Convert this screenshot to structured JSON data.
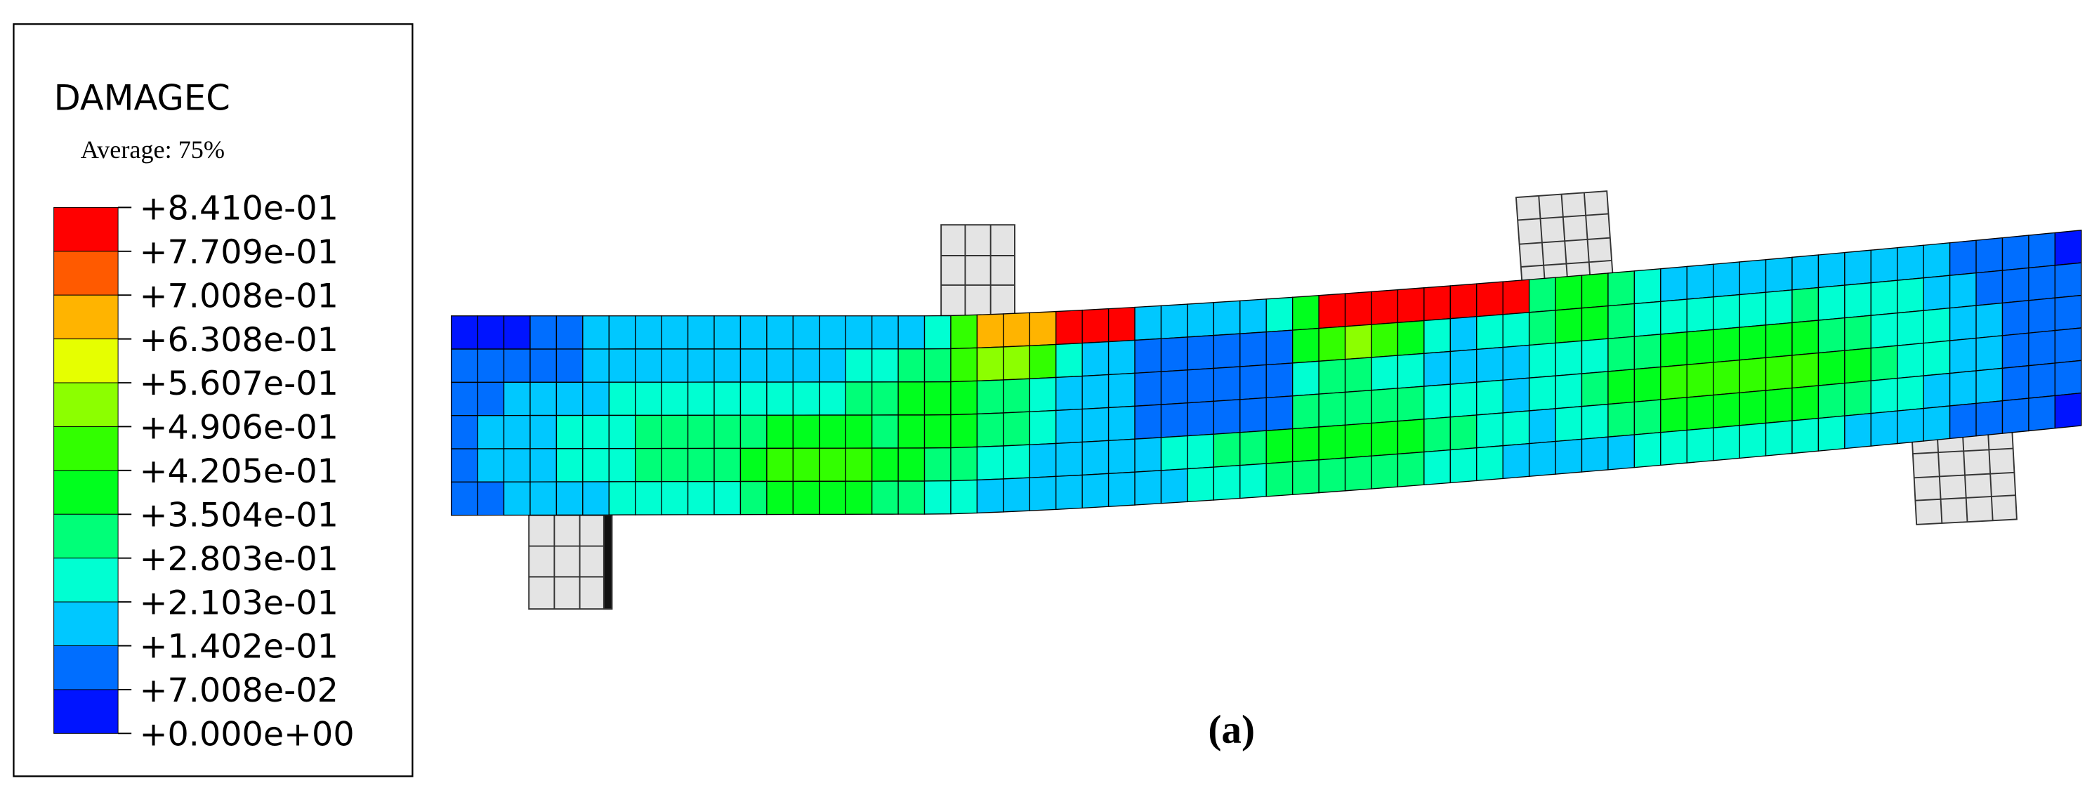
{
  "legend": {
    "title": "DAMAGEC",
    "subtitle": "Average: 75%",
    "levels": [
      "+8.410e-01",
      "+7.709e-01",
      "+7.008e-01",
      "+6.308e-01",
      "+5.607e-01",
      "+4.906e-01",
      "+4.205e-01",
      "+3.504e-01",
      "+2.803e-01",
      "+2.103e-01",
      "+1.402e-01",
      "+7.008e-02",
      "+0.000e+00"
    ],
    "colors": [
      "#ff0000",
      "#ff5a00",
      "#ffb400",
      "#e6ff00",
      "#8cff00",
      "#32ff00",
      "#00ff1e",
      "#00ff78",
      "#00ffd2",
      "#00c8ff",
      "#006eff",
      "#0014ff"
    ]
  },
  "caption": "(a)"
}
